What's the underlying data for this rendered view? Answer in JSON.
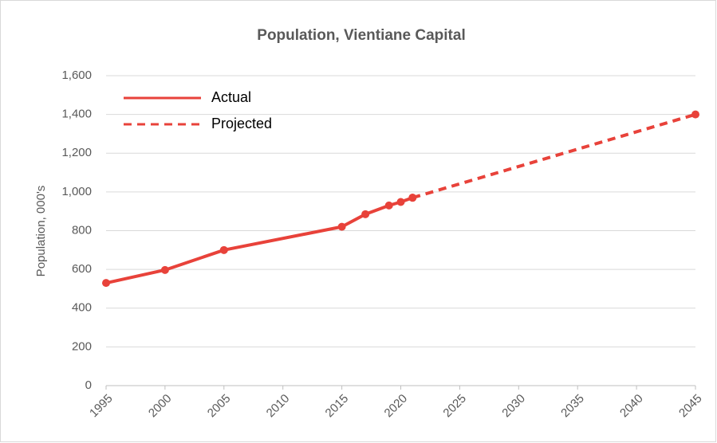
{
  "chart_data": {
    "type": "line",
    "title": "Population, Vientiane Capital",
    "ylabel": "Population, 000's",
    "series": [
      {
        "name": "Actual",
        "color": "#e8423a",
        "dashed": false,
        "x": [
          1995,
          2000,
          2005,
          2015,
          2017,
          2019,
          2020,
          2021
        ],
        "values": [
          530,
          597,
          700,
          820,
          885,
          930,
          948,
          970
        ]
      },
      {
        "name": "Projected",
        "color": "#e8423a",
        "dashed": true,
        "x": [
          2021,
          2045
        ],
        "values": [
          970,
          1400
        ]
      }
    ],
    "xlim": [
      1995,
      2045
    ],
    "xticks": [
      1995,
      2000,
      2005,
      2010,
      2015,
      2020,
      2025,
      2030,
      2035,
      2040,
      2045
    ],
    "ylim": [
      0,
      1600
    ],
    "yticks": [
      0,
      200,
      400,
      600,
      800,
      {
        "value": 1000,
        "label": "1,000"
      },
      {
        "value": 1200,
        "label": "1,200"
      },
      {
        "value": 1400,
        "label": "1,400"
      },
      {
        "value": 1600,
        "label": "1,600"
      }
    ],
    "grid": true,
    "legend": "top-left"
  }
}
